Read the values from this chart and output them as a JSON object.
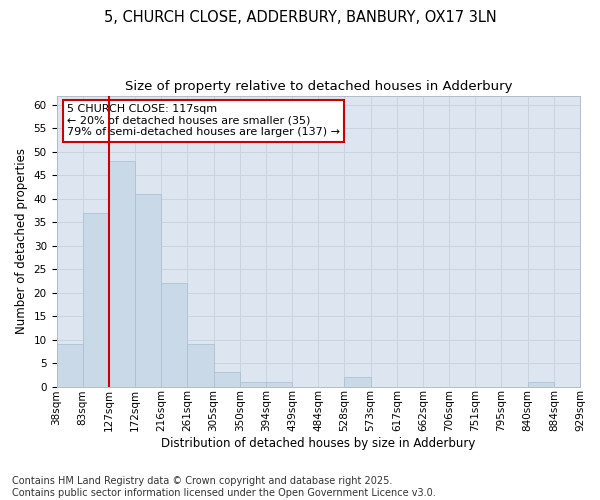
{
  "title_line1": "5, CHURCH CLOSE, ADDERBURY, BANBURY, OX17 3LN",
  "title_line2": "Size of property relative to detached houses in Adderbury",
  "xlabel": "Distribution of detached houses by size in Adderbury",
  "ylabel": "Number of detached properties",
  "bar_values": [
    9,
    37,
    48,
    41,
    22,
    9,
    3,
    1,
    1,
    0,
    0,
    2,
    0,
    0,
    0,
    0,
    0,
    0,
    1,
    0
  ],
  "bin_labels": [
    "38sqm",
    "83sqm",
    "127sqm",
    "172sqm",
    "216sqm",
    "261sqm",
    "305sqm",
    "350sqm",
    "394sqm",
    "439sqm",
    "484sqm",
    "528sqm",
    "573sqm",
    "617sqm",
    "662sqm",
    "706sqm",
    "751sqm",
    "795sqm",
    "840sqm",
    "884sqm",
    "929sqm"
  ],
  "bar_color": "#c9d9e8",
  "bar_edge_color": "#a8bdd0",
  "vline_color": "#cc0000",
  "annotation_text": "5 CHURCH CLOSE: 117sqm\n← 20% of detached houses are smaller (35)\n79% of semi-detached houses are larger (137) →",
  "annotation_box_color": "#ffffff",
  "annotation_box_edge": "#cc0000",
  "ylim": [
    0,
    62
  ],
  "yticks": [
    0,
    5,
    10,
    15,
    20,
    25,
    30,
    35,
    40,
    45,
    50,
    55,
    60
  ],
  "grid_color": "#c8d4e0",
  "bg_color": "#dde6f0",
  "fig_bg_color": "#ffffff",
  "footnote": "Contains HM Land Registry data © Crown copyright and database right 2025.\nContains public sector information licensed under the Open Government Licence v3.0.",
  "title_fontsize": 10.5,
  "subtitle_fontsize": 9.5,
  "axis_label_fontsize": 8.5,
  "tick_fontsize": 7.5,
  "annotation_fontsize": 8,
  "footnote_fontsize": 7
}
